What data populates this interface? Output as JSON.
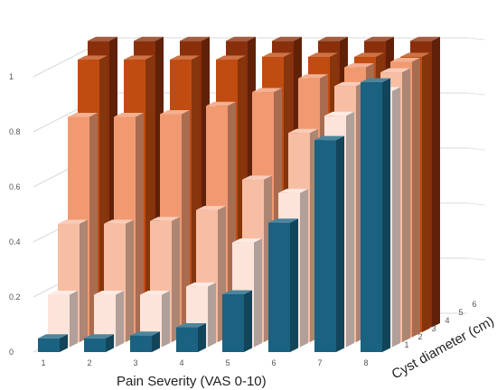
{
  "chart_data": {
    "type": "bar",
    "variant": "3d-column",
    "title": "",
    "xlabel": "Pain Severity (VAS 0-10)",
    "ylabel": "",
    "zlabel": "Cyst diameter (cm)",
    "x_categories": [
      "1",
      "2",
      "3",
      "4",
      "5",
      "6",
      "7",
      "8"
    ],
    "z_ticks": [
      "1",
      "2",
      "3",
      "4",
      "5",
      "6"
    ],
    "y_ticks": [
      "0",
      "0.2",
      "0.4",
      "0.6",
      "0.8",
      "1"
    ],
    "ylim": [
      0,
      1.2
    ],
    "grid": true,
    "series": [
      {
        "color": "#1a6280",
        "values": [
          0.05,
          0.05,
          0.06,
          0.09,
          0.21,
          0.47,
          0.77,
          0.98
        ]
      },
      {
        "color": "#fde4da",
        "values": [
          0.19,
          0.19,
          0.19,
          0.22,
          0.38,
          0.56,
          0.84,
          0.93
        ]
      },
      {
        "color": "#f7bea4",
        "values": [
          0.43,
          0.43,
          0.44,
          0.48,
          0.59,
          0.76,
          0.93,
          0.98
        ]
      },
      {
        "color": "#f19a72",
        "values": [
          0.8,
          0.8,
          0.81,
          0.84,
          0.89,
          0.94,
          0.98,
          1.0
        ]
      },
      {
        "color": "#c04c12",
        "values": [
          0.99,
          0.99,
          0.99,
          0.99,
          1.0,
          1.0,
          1.0,
          1.0
        ]
      },
      {
        "color": "#8a2f0c",
        "values": [
          1.04,
          1.04,
          1.04,
          1.04,
          1.04,
          1.04,
          1.04,
          1.04
        ]
      }
    ]
  }
}
